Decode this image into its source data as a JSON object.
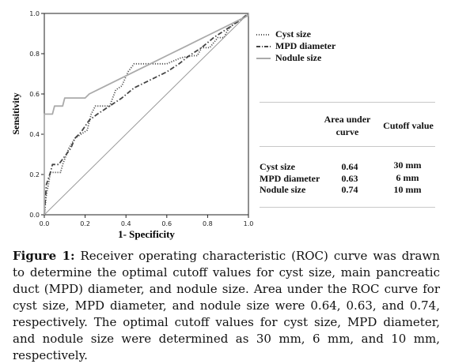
{
  "chart_data": {
    "type": "line",
    "xlabel": "1- Specificity",
    "ylabel": "Sensitivity",
    "xlim": [
      0,
      1
    ],
    "ylim": [
      0,
      1
    ],
    "x_ticks": [
      "0.0",
      "0.2",
      "0.4",
      "0.6",
      "0.8",
      "1.0"
    ],
    "y_ticks": [
      "0.0",
      "0.2",
      "0.4",
      "0.6",
      "0.8",
      "1.0"
    ],
    "legend_position": "top-right",
    "series": [
      {
        "name": "Cyst size",
        "style": "dotted",
        "color": "#555555",
        "points": [
          [
            0,
            0
          ],
          [
            0.01,
            0.1
          ],
          [
            0.02,
            0.15
          ],
          [
            0.03,
            0.21
          ],
          [
            0.08,
            0.21
          ],
          [
            0.09,
            0.25
          ],
          [
            0.12,
            0.33
          ],
          [
            0.15,
            0.38
          ],
          [
            0.18,
            0.4
          ],
          [
            0.21,
            0.42
          ],
          [
            0.23,
            0.5
          ],
          [
            0.25,
            0.54
          ],
          [
            0.32,
            0.54
          ],
          [
            0.35,
            0.62
          ],
          [
            0.38,
            0.64
          ],
          [
            0.41,
            0.71
          ],
          [
            0.44,
            0.75
          ],
          [
            0.55,
            0.75
          ],
          [
            0.6,
            0.75
          ],
          [
            0.67,
            0.78
          ],
          [
            0.73,
            0.79
          ],
          [
            0.75,
            0.79
          ],
          [
            0.77,
            0.83
          ],
          [
            0.81,
            0.83
          ],
          [
            0.85,
            0.88
          ],
          [
            0.88,
            0.88
          ],
          [
            0.9,
            0.92
          ],
          [
            0.94,
            0.96
          ],
          [
            0.98,
            0.98
          ],
          [
            1,
            1
          ]
        ]
      },
      {
        "name": "MPD diameter",
        "style": "dash-dot",
        "color": "#444444",
        "points": [
          [
            0,
            0
          ],
          [
            0.01,
            0.15
          ],
          [
            0.03,
            0.21
          ],
          [
            0.04,
            0.25
          ],
          [
            0.07,
            0.25
          ],
          [
            0.1,
            0.29
          ],
          [
            0.13,
            0.33
          ],
          [
            0.15,
            0.38
          ],
          [
            0.18,
            0.41
          ],
          [
            0.22,
            0.47
          ],
          [
            0.26,
            0.5
          ],
          [
            0.32,
            0.54
          ],
          [
            0.38,
            0.58
          ],
          [
            0.44,
            0.63
          ],
          [
            0.52,
            0.67
          ],
          [
            0.6,
            0.71
          ],
          [
            0.66,
            0.75
          ],
          [
            0.71,
            0.79
          ],
          [
            0.77,
            0.83
          ],
          [
            0.83,
            0.88
          ],
          [
            0.89,
            0.92
          ],
          [
            0.95,
            0.96
          ],
          [
            1,
            1
          ]
        ]
      },
      {
        "name": "Nodule size",
        "style": "solid",
        "color": "#aaaaaa",
        "points": [
          [
            0,
            0
          ],
          [
            0,
            0.5
          ],
          [
            0.04,
            0.5
          ],
          [
            0.05,
            0.54
          ],
          [
            0.09,
            0.54
          ],
          [
            0.1,
            0.58
          ],
          [
            0.13,
            0.58
          ],
          [
            0.14,
            0.58
          ],
          [
            0.2,
            0.58
          ],
          [
            0.22,
            0.6
          ],
          [
            0.3,
            0.64
          ],
          [
            0.4,
            0.69
          ],
          [
            0.5,
            0.74
          ],
          [
            0.6,
            0.79
          ],
          [
            0.7,
            0.84
          ],
          [
            0.8,
            0.89
          ],
          [
            0.9,
            0.94
          ],
          [
            1,
            0.99
          ],
          [
            1,
            1
          ]
        ]
      },
      {
        "name": "reference",
        "style": "solid",
        "color": "#999999",
        "points": [
          [
            0,
            0
          ],
          [
            1,
            1
          ]
        ]
      }
    ]
  },
  "table": {
    "header_area": "Area under curve",
    "header_cutoff": "Cutoff value",
    "rows": [
      {
        "label": "Cyst size",
        "area": "0.64",
        "cutoff": "30 mm"
      },
      {
        "label": "MPD diameter",
        "area": "0.63",
        "cutoff": "6 mm"
      },
      {
        "label": "Nodule size",
        "area": "0.74",
        "cutoff": "10 mm"
      }
    ]
  },
  "caption": {
    "label": "Figure 1:",
    "text": " Receiver operating characteristic (ROC) curve was drawn to determine the optimal cutoff values for cyst size, main pancreatic duct (MPD) diameter, and nodule size. Area under the ROC curve for cyst size, MPD diameter, and nodule size were 0.64, 0.63, and 0.74, respectively. The optimal cutoff values for cyst size, MPD diameter, and nodule size were determined as 30 mm, 6 mm, and 10 mm, respectively."
  }
}
